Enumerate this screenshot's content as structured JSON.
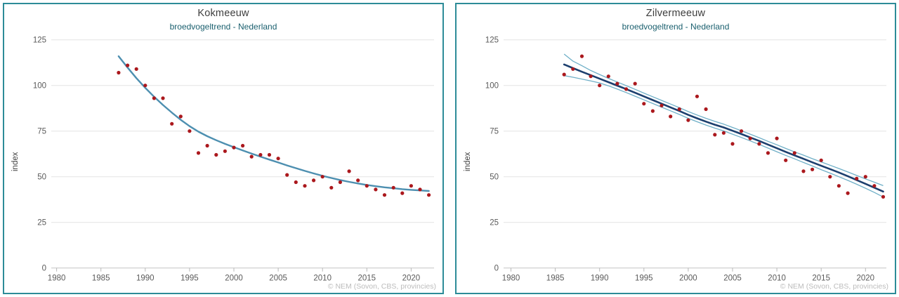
{
  "page": {
    "background": "#ffffff",
    "panel_border_color": "#2d8c98"
  },
  "chart_data": [
    {
      "type": "scatter",
      "title": "Kokmeeuw",
      "subtitle": "broedvogeltrend - Nederland",
      "ylabel": "index",
      "attribution": "© NEM (Sovon, CBS, provincies)",
      "grid": "horizontal",
      "legend_position": "none",
      "xlim": [
        1979,
        2023
      ],
      "ylim": [
        0,
        129
      ],
      "xticks": [
        1980,
        1985,
        1990,
        1995,
        2000,
        2005,
        2010,
        2015,
        2020
      ],
      "yticks": [
        0,
        25,
        50,
        75,
        100,
        125
      ],
      "point_color": "#ab181d",
      "trend_color": "#4d8fb0",
      "years": [
        1987,
        1988,
        1989,
        1990,
        1991,
        1992,
        1993,
        1994,
        1995,
        1996,
        1997,
        1998,
        1999,
        2000,
        2001,
        2002,
        2003,
        2004,
        2005,
        2006,
        2007,
        2008,
        2009,
        2010,
        2011,
        2012,
        2013,
        2014,
        2015,
        2016,
        2017,
        2018,
        2019,
        2020,
        2021,
        2022
      ],
      "index_values": [
        107,
        111,
        109,
        100,
        93,
        93,
        79,
        83,
        75,
        63,
        67,
        62,
        64,
        66,
        67,
        61,
        62,
        62,
        60,
        51,
        47,
        45,
        48,
        50,
        44,
        47,
        53,
        48,
        45,
        43,
        40,
        44,
        41,
        45,
        43,
        40
      ],
      "trend_values": [
        116,
        109.8,
        104,
        98.7,
        93.8,
        89.3,
        85.1,
        81.2,
        77.7,
        74.7,
        72.2,
        70,
        68,
        66.2,
        64.4,
        62.7,
        61,
        59.4,
        57.8,
        56.2,
        54.7,
        53.2,
        51.8,
        50.5,
        49.3,
        48.2,
        47.2,
        46.3,
        45.5,
        44.8,
        44.2,
        43.7,
        43.2,
        42.8,
        42.5,
        42.2
      ]
    },
    {
      "type": "scatter",
      "title": "Zilvermeeuw",
      "subtitle": "broedvogeltrend - Nederland",
      "ylabel": "index",
      "attribution": "© NEM (Sovon, CBS, provincies)",
      "grid": "horizontal",
      "legend_position": "none",
      "xlim": [
        1979,
        2023
      ],
      "ylim": [
        0,
        129
      ],
      "xticks": [
        1980,
        1985,
        1990,
        1995,
        2000,
        2005,
        2010,
        2015,
        2020
      ],
      "yticks": [
        0,
        25,
        50,
        75,
        100,
        125
      ],
      "point_color": "#ab181d",
      "trend_color": "#1c3f6e",
      "ci_color": "#6fafc7",
      "years": [
        1986,
        1987,
        1988,
        1989,
        1990,
        1991,
        1992,
        1993,
        1994,
        1995,
        1996,
        1997,
        1998,
        1999,
        2000,
        2001,
        2002,
        2003,
        2004,
        2005,
        2006,
        2007,
        2008,
        2009,
        2010,
        2011,
        2012,
        2013,
        2014,
        2015,
        2016,
        2017,
        2018,
        2019,
        2020,
        2021,
        2022
      ],
      "index_values": [
        106,
        109,
        116,
        105,
        100,
        105,
        101,
        98,
        101,
        90,
        86,
        89,
        83,
        87,
        81,
        94,
        87,
        73,
        74,
        68,
        75,
        71,
        68,
        63,
        71,
        59,
        63,
        53,
        54,
        59,
        50,
        45,
        41,
        49,
        50,
        45,
        39
      ],
      "trend_values": [
        111.5,
        109.5,
        107.5,
        105.6,
        103.7,
        101.8,
        99.9,
        98,
        96,
        94,
        92,
        90,
        88,
        86,
        83.9,
        82,
        80.2,
        78.5,
        77,
        75.2,
        73.4,
        71.5,
        69.6,
        67.6,
        65.6,
        63.6,
        61.7,
        59.8,
        57.9,
        56,
        54.2,
        52.3,
        50.3,
        48.2,
        46.1,
        44,
        41.9
      ],
      "ci_upper": [
        117.2,
        113.3,
        110.8,
        108.2,
        106,
        103.9,
        101.9,
        99.9,
        97.9,
        95.8,
        93.8,
        91.8,
        89.8,
        87.8,
        85.7,
        83.8,
        82,
        80.3,
        78.8,
        77,
        75.2,
        73.3,
        71.4,
        69.4,
        67.5,
        65.5,
        63.6,
        61.8,
        59.9,
        58.1,
        56.3,
        54.5,
        52.6,
        50.7,
        48.8,
        47,
        45.1
      ],
      "ci_lower": [
        105.4,
        104.5,
        103.5,
        102.5,
        101.4,
        99.8,
        98,
        96.1,
        94.1,
        92.1,
        90.1,
        88.1,
        86.1,
        84.1,
        82,
        80.1,
        78.3,
        76.6,
        75.1,
        73.3,
        71.5,
        69.6,
        67.7,
        65.7,
        63.7,
        61.7,
        59.8,
        57.8,
        55.9,
        53.9,
        52,
        50,
        48,
        45.9,
        43.7,
        41.4,
        38.9
      ]
    }
  ]
}
